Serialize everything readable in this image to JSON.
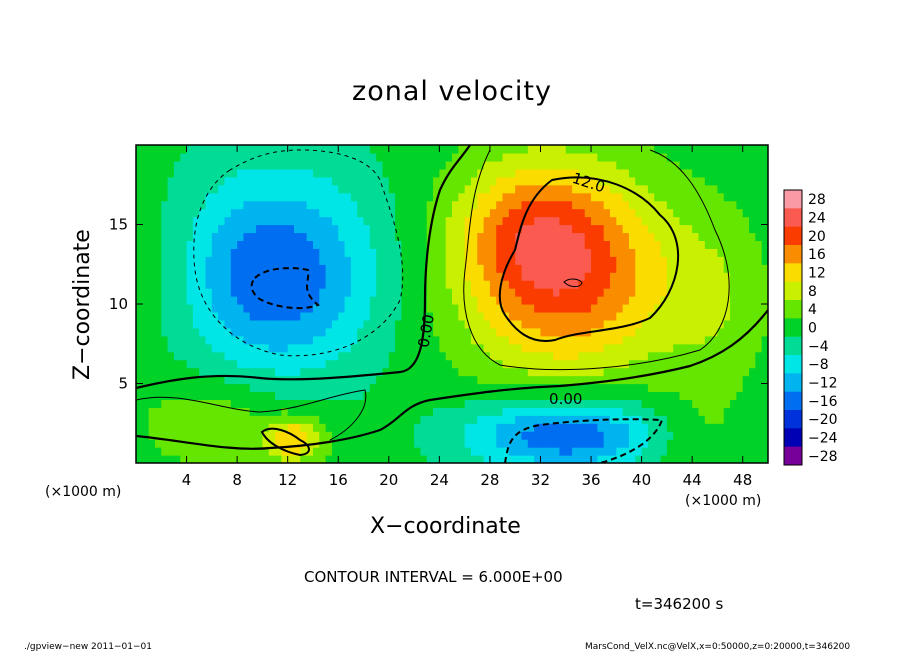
{
  "chart_data": {
    "type": "heatmap",
    "title": "zonal velocity",
    "xlabel": "X−coordinate",
    "ylabel": "Z−coordinate",
    "x_unit_left": "(×1000 m)",
    "x_unit_right": "(×1000 m)",
    "xlim": [
      0,
      50
    ],
    "ylim": [
      0,
      20
    ],
    "x_ticks": [
      4,
      8,
      12,
      16,
      20,
      24,
      28,
      32,
      36,
      40,
      44,
      48
    ],
    "y_ticks": [
      5,
      10,
      15
    ],
    "colorbar_levels": [
      28,
      24,
      20,
      16,
      12,
      8,
      4,
      0,
      -4,
      -8,
      -12,
      -16,
      -20,
      -24,
      -28
    ],
    "colorbar_labels": [
      "28",
      "24",
      "20",
      "16",
      "12",
      "8",
      "4",
      "0",
      "−4",
      "−8",
      "−12",
      "−16",
      "−20",
      "−24",
      "−28"
    ],
    "colorbar_colors": [
      "#fa9aa5",
      "#fa5a50",
      "#fa3c00",
      "#fa8c00",
      "#fadc00",
      "#c8f000",
      "#64e600",
      "#00d228",
      "#00dc96",
      "#00e6e6",
      "#00b4f0",
      "#006ef0",
      "#0032dc",
      "#0000b4",
      "#78009a"
    ],
    "contour_labels": [
      {
        "text": "12.0",
        "x": 35.8,
        "z": 17.6,
        "angle": 18
      },
      {
        "text": "0.00",
        "x": 23.0,
        "z": 8.3,
        "angle": -80
      },
      {
        "text": "0.00",
        "x": 34.0,
        "z": 4.0,
        "angle": 0
      }
    ],
    "contour_interval": "CONTOUR INTERVAL = 6.000E+00",
    "time_label": "t=346200 s",
    "features": [
      {
        "x": 34,
        "z": 12,
        "value": 21,
        "sx": 6,
        "sz": 4.5
      },
      {
        "x": 31,
        "z": 15,
        "value": 8,
        "sx": 4,
        "sz": 3
      },
      {
        "x": 11,
        "z": 11,
        "value": -14,
        "sx": 5.5,
        "sz": 4
      },
      {
        "x": 11,
        "z": 15,
        "value": -5,
        "sx": 6,
        "sz": 4
      },
      {
        "x": 34,
        "z": 1.8,
        "value": -18,
        "sx": 5.5,
        "sz": 1.6
      },
      {
        "x": 12.5,
        "z": 1.5,
        "value": 14,
        "sx": 1.7,
        "sz": 1
      },
      {
        "x": 6,
        "z": 2.5,
        "value": 6,
        "sx": 4,
        "sz": 2
      },
      {
        "x": 44,
        "z": 1.5,
        "value": 4,
        "sx": 3,
        "sz": 2
      },
      {
        "x": 46,
        "z": 10,
        "value": 5,
        "sx": 3,
        "sz": 4
      },
      {
        "x": 2,
        "z": 12,
        "value": 3,
        "sx": 3,
        "sz": 4
      }
    ]
  },
  "footer": {
    "left": "./gpview−new   2011−01−01",
    "right": "MarsCond_VelX.nc@VelX,x=0:50000,z=0:20000,t=346200"
  }
}
